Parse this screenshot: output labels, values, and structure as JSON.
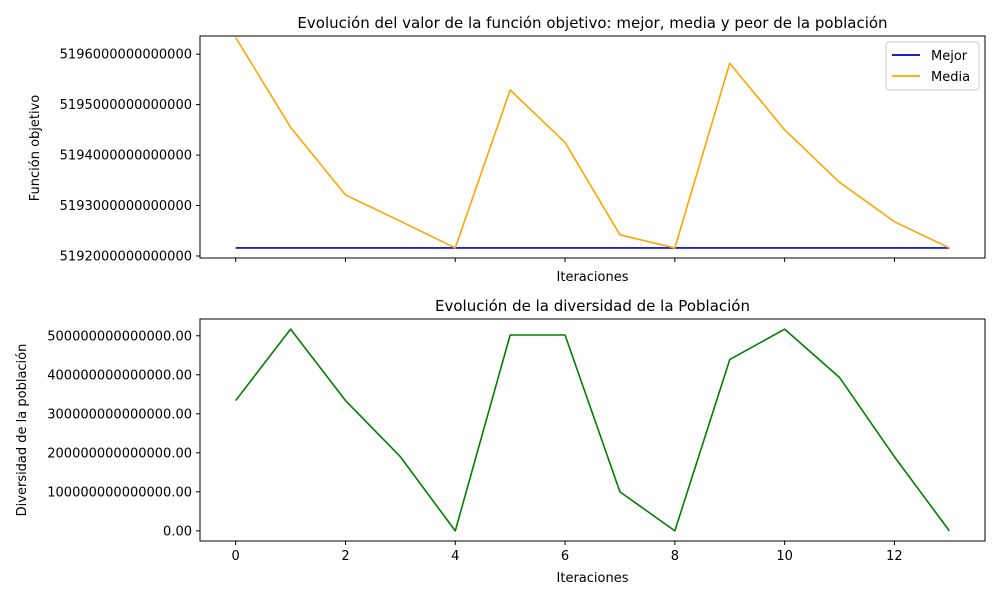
{
  "chart_data": [
    {
      "type": "line",
      "title": "Evolución del valor de la función objetivo: mejor, media y peor de la población",
      "xlabel": "Iteraciones",
      "ylabel": "Función objetivo",
      "x": [
        0,
        1,
        2,
        3,
        4,
        5,
        6,
        7,
        8,
        9,
        10,
        11,
        12,
        13
      ],
      "xlim": [
        -0.65,
        13.65
      ],
      "ylim": [
        5191960000000000,
        5196360000000000
      ],
      "yticks": [
        5192000000000000,
        5193000000000000,
        5194000000000000,
        5195000000000000,
        5196000000000000
      ],
      "ytick_labels": [
        "5192000000000000",
        "5193000000000000",
        "5194000000000000",
        "5195000000000000",
        "5196000000000000"
      ],
      "xtick_labels_shown": false,
      "legend": "top-right",
      "series": [
        {
          "name": "Mejor",
          "color": "#0000cc",
          "values": [
            5192160000000000,
            5192160000000000,
            5192160000000000,
            5192160000000000,
            5192160000000000,
            5192160000000000,
            5192160000000000,
            5192160000000000,
            5192160000000000,
            5192160000000000,
            5192160000000000,
            5192160000000000,
            5192160000000000,
            5192160000000000
          ]
        },
        {
          "name": "Media",
          "color": "#ffa500",
          "values": [
            5196330000000000,
            5194550000000000,
            5193210000000000,
            5192690000000000,
            5192160000000000,
            5195290000000000,
            5194250000000000,
            5192420000000000,
            5192160000000000,
            5195820000000000,
            5194500000000000,
            5193460000000000,
            5192680000000000,
            5192160000000000
          ]
        }
      ]
    },
    {
      "type": "line",
      "title": "Evolución de la diversidad de la Población",
      "xlabel": "Iteraciones",
      "ylabel": "Diversidad de la población",
      "x": [
        0,
        1,
        2,
        3,
        4,
        5,
        6,
        7,
        8,
        9,
        10,
        11,
        12,
        13
      ],
      "xlim": [
        -0.65,
        13.65
      ],
      "ylim": [
        -26000000000000,
        543000000000000
      ],
      "xticks": [
        0,
        2,
        4,
        6,
        8,
        10,
        12
      ],
      "xtick_labels": [
        "0",
        "2",
        "4",
        "6",
        "8",
        "10",
        "12"
      ],
      "yticks": [
        0,
        100000000000000,
        200000000000000,
        300000000000000,
        400000000000000,
        500000000000000
      ],
      "ytick_labels": [
        "0.00",
        "100000000000000.00",
        "200000000000000.00",
        "300000000000000.00",
        "400000000000000.00",
        "500000000000000.00"
      ],
      "series": [
        {
          "color": "#008000",
          "values": [
            334000000000000,
            517000000000000,
            334000000000000,
            190000000000000,
            0,
            502000000000000,
            502000000000000,
            100000000000000,
            0,
            439000000000000,
            517000000000000,
            393000000000000,
            190000000000000,
            0
          ]
        }
      ]
    }
  ]
}
